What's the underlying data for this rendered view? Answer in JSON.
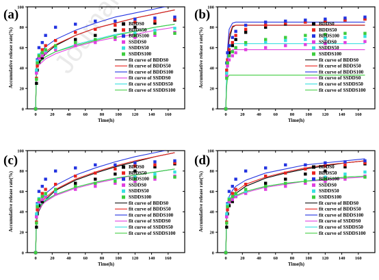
{
  "colors": {
    "BDDS0": "#000000",
    "BDDS50": "#e8231f",
    "BDDS100": "#2434e0",
    "SSDDS0": "#e040e0",
    "SSDDS50": "#38e0e0",
    "SSDDS100": "#3dcc3d"
  },
  "chart_data": [
    {
      "panel": "(a)",
      "type": "scatter",
      "xlabel": "Time(h)",
      "ylabel": "Accumulative release rate(%)",
      "xlim": [
        -10,
        180
      ],
      "ylim": [
        0,
        100
      ],
      "xticks": [
        0,
        20,
        40,
        60,
        80,
        100,
        120,
        140,
        160
      ],
      "yticks": [
        0,
        20,
        40,
        60,
        80,
        100
      ],
      "x": [
        0,
        1,
        2,
        4,
        8,
        12,
        24,
        48,
        72,
        96,
        120,
        144,
        168
      ],
      "series": [
        {
          "name": "BDDS0",
          "values": [
            0,
            25,
            38,
            46,
            50,
            55,
            60,
            68,
            72,
            77,
            80,
            84,
            87
          ]
        },
        {
          "name": "BDDS50",
          "values": [
            0,
            30,
            42,
            52,
            58,
            62,
            67,
            75,
            78,
            82,
            85,
            86,
            88
          ]
        },
        {
          "name": "BDDS100",
          "values": [
            0,
            36,
            48,
            60,
            65,
            72,
            80,
            83,
            86,
            86,
            88,
            89,
            90
          ]
        },
        {
          "name": "SSDDS0",
          "values": [
            0,
            35,
            45,
            50,
            52,
            55,
            58,
            62,
            65,
            68,
            70,
            72,
            75
          ]
        },
        {
          "name": "SSDDS50",
          "values": [
            0,
            38,
            47,
            53,
            55,
            57,
            60,
            65,
            68,
            71,
            74,
            77,
            79
          ]
        },
        {
          "name": "SSDDS100",
          "values": [
            0,
            29,
            45,
            52,
            55,
            58,
            62,
            65,
            68,
            70,
            72,
            74,
            74
          ]
        }
      ],
      "fits": [
        {
          "name": "fit curve of BDDS0",
          "values": [
            0,
            39,
            42,
            45,
            50,
            54,
            62,
            72,
            79,
            84,
            89,
            93,
            97
          ]
        },
        {
          "name": "fit curve of BDDS50",
          "values": [
            0,
            42,
            45,
            48,
            52,
            56,
            63,
            72,
            79,
            84,
            89,
            93,
            97
          ]
        },
        {
          "name": "fit curve of BDDS100",
          "values": [
            0,
            47,
            50,
            53,
            57,
            61,
            68,
            77,
            84,
            90,
            94,
            98,
            102
          ]
        },
        {
          "name": "fit curve of SSDDS0",
          "values": [
            0,
            38,
            41,
            43,
            46,
            49,
            54,
            61,
            66,
            70,
            73,
            77,
            80
          ]
        },
        {
          "name": "fit curve of SSDDS50",
          "values": [
            0,
            40,
            43,
            45,
            48,
            51,
            56,
            63,
            68,
            73,
            76,
            80,
            83
          ]
        },
        {
          "name": "fit curve of SSDDS100",
          "values": [
            0,
            40,
            43,
            45,
            48,
            51,
            56,
            62,
            67,
            72,
            76,
            80,
            83
          ]
        }
      ]
    },
    {
      "panel": "(b)",
      "type": "scatter",
      "xlabel": "Time(h)",
      "ylabel": "Accumulative release rate(%)",
      "xlim": [
        -10,
        180
      ],
      "ylim": [
        0,
        100
      ],
      "xticks": [
        0,
        20,
        40,
        60,
        80,
        100,
        120,
        140,
        160
      ],
      "yticks": [
        0,
        20,
        40,
        60,
        80,
        100
      ],
      "x": [
        0,
        1,
        2,
        4,
        8,
        12,
        24,
        48,
        72,
        96,
        120,
        144,
        168
      ],
      "series": [
        {
          "name": "BDDS0",
          "values": [
            0,
            35,
            45,
            55,
            62,
            68,
            75,
            80,
            83,
            85,
            86,
            87,
            88
          ]
        },
        {
          "name": "BDDS50",
          "values": [
            0,
            38,
            48,
            58,
            65,
            72,
            78,
            82,
            84,
            85,
            86,
            87,
            88
          ]
        },
        {
          "name": "BDDS100",
          "values": [
            0,
            45,
            55,
            62,
            70,
            76,
            82,
            85,
            86,
            87,
            88,
            89,
            90
          ]
        },
        {
          "name": "SSDDS0",
          "values": [
            0,
            32,
            42,
            48,
            52,
            55,
            58,
            60,
            62,
            63,
            64,
            65,
            66
          ]
        },
        {
          "name": "SSDDS50",
          "values": [
            0,
            35,
            45,
            52,
            56,
            60,
            63,
            65,
            67,
            68,
            69,
            70,
            71
          ]
        },
        {
          "name": "SSDDS100",
          "values": [
            0,
            30,
            45,
            52,
            56,
            60,
            65,
            68,
            70,
            72,
            73,
            74,
            74
          ]
        }
      ],
      "fits": [
        {
          "name": "fit curve of BDDS0",
          "values": [
            0,
            28,
            48,
            68,
            80,
            82,
            82,
            82,
            82,
            82,
            82,
            82,
            82
          ]
        },
        {
          "name": "fit curve of BDDS50",
          "values": [
            0,
            30,
            52,
            72,
            81,
            82,
            82,
            82,
            82,
            82,
            82,
            82,
            82
          ]
        },
        {
          "name": "fit curve of BDDS100",
          "values": [
            0,
            35,
            58,
            78,
            84,
            85,
            85,
            85,
            85,
            85,
            85,
            85,
            85
          ]
        },
        {
          "name": "fit curve of SSDDS0",
          "values": [
            0,
            30,
            45,
            55,
            58,
            58,
            58,
            58,
            58,
            58,
            58,
            58,
            58
          ]
        },
        {
          "name": "fit curve of SSDDS50",
          "values": [
            0,
            33,
            48,
            60,
            64,
            64,
            64,
            64,
            64,
            64,
            64,
            64,
            64
          ]
        },
        {
          "name": "fit curve of SSDDS100",
          "values": [
            0,
            22,
            30,
            33,
            33,
            33,
            33,
            33,
            33,
            33,
            33,
            33,
            33
          ]
        }
      ]
    },
    {
      "panel": "(c)",
      "type": "scatter",
      "xlabel": "Time(h)",
      "ylabel": "Accumulative release rate(%)",
      "xlim": [
        -10,
        180
      ],
      "ylim": [
        0,
        100
      ],
      "xticks": [
        0,
        20,
        40,
        60,
        80,
        100,
        120,
        140,
        160
      ],
      "yticks": [
        0,
        20,
        40,
        60,
        80,
        100
      ],
      "x": [
        0,
        1,
        2,
        4,
        8,
        12,
        24,
        48,
        72,
        96,
        120,
        144,
        168
      ],
      "series": [
        {
          "name": "BDDS0",
          "values": [
            0,
            25,
            38,
            46,
            50,
            55,
            60,
            68,
            72,
            77,
            80,
            84,
            87
          ]
        },
        {
          "name": "BDDS50",
          "values": [
            0,
            30,
            42,
            52,
            58,
            62,
            67,
            75,
            78,
            82,
            85,
            86,
            88
          ]
        },
        {
          "name": "BDDS100",
          "values": [
            0,
            36,
            48,
            60,
            65,
            72,
            80,
            83,
            86,
            86,
            88,
            89,
            90
          ]
        },
        {
          "name": "SSDDS0",
          "values": [
            0,
            35,
            45,
            50,
            52,
            55,
            58,
            62,
            65,
            68,
            70,
            72,
            75
          ]
        },
        {
          "name": "SSDDS50",
          "values": [
            0,
            38,
            47,
            53,
            55,
            57,
            60,
            65,
            68,
            71,
            74,
            77,
            79
          ]
        },
        {
          "name": "SSDDS100",
          "values": [
            0,
            29,
            45,
            52,
            55,
            58,
            62,
            65,
            68,
            70,
            72,
            74,
            74
          ]
        }
      ],
      "fits": [
        {
          "name": "fit curve of BDDS0",
          "values": [
            0,
            30,
            36,
            41,
            47,
            52,
            61,
            71,
            78,
            84,
            89,
            94,
            98
          ]
        },
        {
          "name": "fit curve of BDDS50",
          "values": [
            0,
            34,
            39,
            44,
            50,
            54,
            62,
            72,
            79,
            85,
            90,
            94,
            98
          ]
        },
        {
          "name": "fit curve of BDDS100",
          "values": [
            0,
            36,
            42,
            47,
            53,
            58,
            66,
            76,
            83,
            89,
            94,
            98,
            102
          ]
        },
        {
          "name": "fit curve of SSDDS0",
          "values": [
            0,
            33,
            38,
            42,
            47,
            50,
            56,
            63,
            68,
            72,
            76,
            79,
            82
          ]
        },
        {
          "name": "fit curve of SSDDS50",
          "values": [
            0,
            36,
            41,
            45,
            49,
            52,
            57,
            64,
            69,
            73,
            76,
            79,
            82
          ]
        },
        {
          "name": "fit curve of SSDDS100",
          "values": [
            0,
            35,
            40,
            44,
            48,
            51,
            57,
            64,
            69,
            73,
            76,
            79,
            82
          ]
        }
      ]
    },
    {
      "panel": "(d)",
      "type": "scatter",
      "xlabel": "Time(h)",
      "ylabel": "Accumulative release rate(%)",
      "xlim": [
        -10,
        180
      ],
      "ylim": [
        0,
        100
      ],
      "xticks": [
        0,
        20,
        40,
        60,
        80,
        100,
        120,
        140,
        160
      ],
      "yticks": [
        0,
        20,
        40,
        60,
        80,
        100
      ],
      "x": [
        0,
        1,
        2,
        4,
        8,
        12,
        24,
        48,
        72,
        96,
        120,
        144,
        168
      ],
      "series": [
        {
          "name": "BDDS0",
          "values": [
            0,
            25,
            38,
            46,
            50,
            55,
            60,
            68,
            72,
            77,
            80,
            84,
            87
          ]
        },
        {
          "name": "BDDS50",
          "values": [
            0,
            30,
            42,
            52,
            58,
            62,
            67,
            75,
            78,
            82,
            85,
            86,
            88
          ]
        },
        {
          "name": "BDDS100",
          "values": [
            0,
            36,
            48,
            60,
            65,
            72,
            80,
            83,
            86,
            86,
            88,
            89,
            90
          ]
        },
        {
          "name": "SSDDS0",
          "values": [
            0,
            35,
            45,
            50,
            52,
            55,
            58,
            62,
            65,
            68,
            70,
            72,
            75
          ]
        },
        {
          "name": "SSDDS50",
          "values": [
            0,
            38,
            47,
            53,
            55,
            57,
            60,
            65,
            68,
            71,
            74,
            77,
            79
          ]
        },
        {
          "name": "SSDDS100",
          "values": [
            0,
            29,
            45,
            52,
            55,
            58,
            62,
            65,
            68,
            70,
            72,
            74,
            74
          ]
        }
      ],
      "fits": [
        {
          "name": "fit curve of BDDS0",
          "values": [
            0,
            32,
            40,
            47,
            54,
            58,
            65,
            73,
            78,
            82,
            85,
            88,
            90
          ]
        },
        {
          "name": "fit curve of BDDS50",
          "values": [
            0,
            35,
            43,
            50,
            56,
            60,
            67,
            74,
            79,
            83,
            86,
            88,
            90
          ]
        },
        {
          "name": "fit curve of BDDS100",
          "values": [
            0,
            40,
            48,
            55,
            61,
            65,
            71,
            78,
            82,
            86,
            88,
            90,
            92
          ]
        },
        {
          "name": "fit curve of SSDDS0",
          "values": [
            0,
            35,
            42,
            47,
            52,
            55,
            59,
            64,
            67,
            70,
            71,
            73,
            74
          ]
        },
        {
          "name": "fit curve of SSDDS50",
          "values": [
            0,
            38,
            44,
            49,
            53,
            56,
            60,
            65,
            68,
            70,
            72,
            74,
            75
          ]
        },
        {
          "name": "fit curve of SSDDS100",
          "values": [
            0,
            37,
            43,
            48,
            53,
            56,
            60,
            65,
            68,
            70,
            72,
            74,
            75
          ]
        }
      ]
    }
  ]
}
